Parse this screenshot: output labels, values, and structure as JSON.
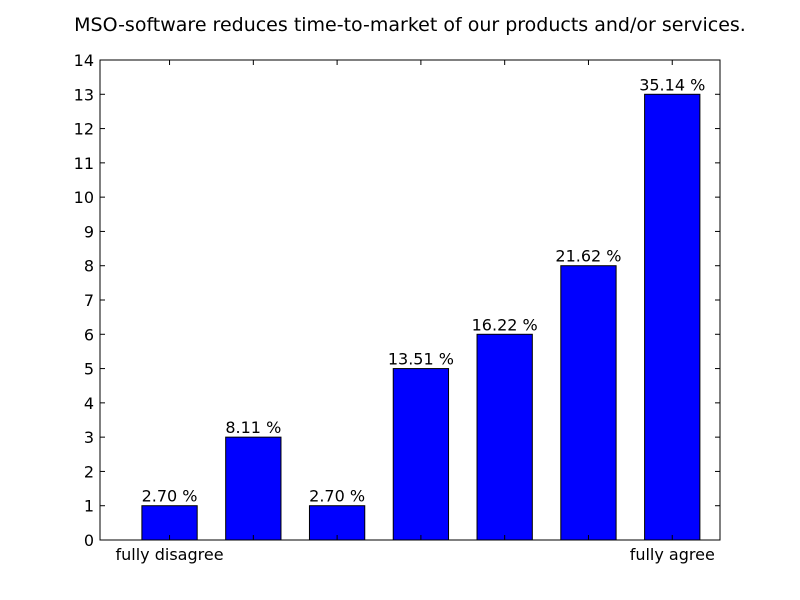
{
  "chart_data": {
    "type": "bar",
    "title": "MSO-software reduces time-to-market of our products and/or services.",
    "xlabel": "",
    "ylabel": "",
    "categories": [
      "1",
      "2",
      "3",
      "4",
      "5",
      "6",
      "7"
    ],
    "category_labels": [
      "fully disagree",
      "",
      "",
      "",
      "",
      "",
      "fully agree"
    ],
    "values": [
      1,
      3,
      1,
      5,
      6,
      8,
      13
    ],
    "data_labels": [
      "2.70 %",
      "8.11 %",
      "2.70 %",
      "13.51 %",
      "16.22 %",
      "21.62 %",
      "35.14 %"
    ],
    "ylim": [
      0,
      14
    ],
    "yticks": [
      0,
      1,
      2,
      3,
      4,
      5,
      6,
      7,
      8,
      9,
      10,
      11,
      12,
      13,
      14
    ],
    "bar_color": "#0000ff",
    "grid": false,
    "legend": "none"
  }
}
